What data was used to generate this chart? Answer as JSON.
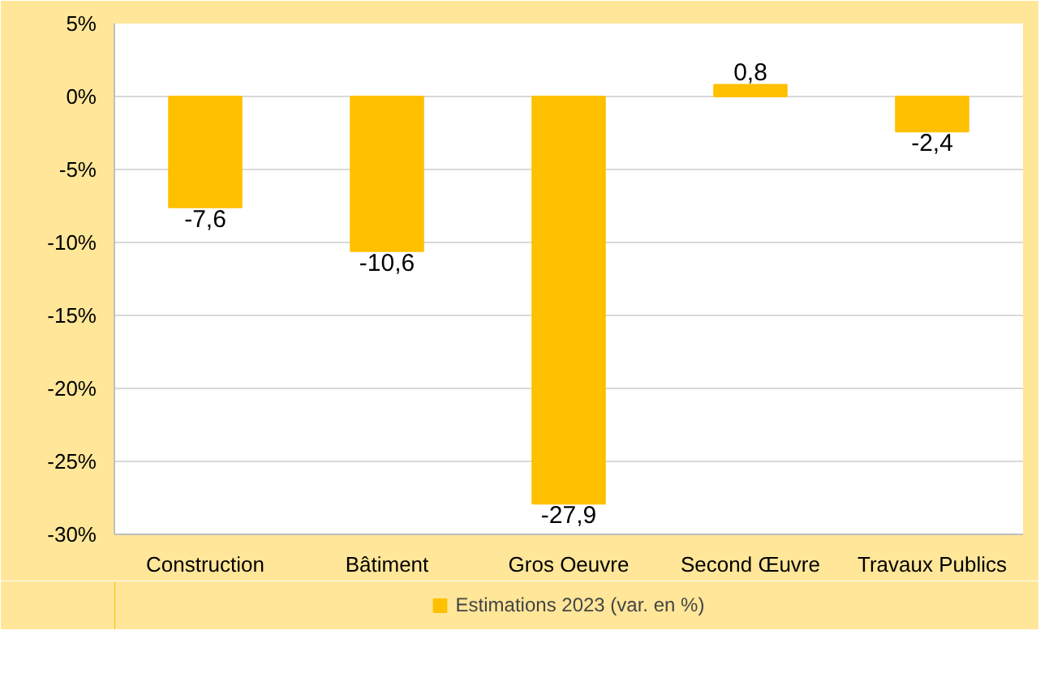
{
  "chart_data": {
    "type": "bar",
    "categories": [
      "Construction",
      "Bâtiment",
      "Gros Oeuvre",
      "Second Œuvre",
      "Travaux Publics"
    ],
    "series": [
      {
        "name": "Estimations 2023 (var. en %)",
        "color": "#ffc000",
        "values": [
          -7.6,
          -10.6,
          -27.9,
          0.8,
          -2.4
        ]
      }
    ],
    "value_labels": [
      "-7,6",
      "-10,6",
      "-27,9",
      "0,8",
      "-2,4"
    ],
    "ylim": [
      -30,
      5
    ],
    "yticks": [
      {
        "value": -30,
        "label": "-30%"
      },
      {
        "value": -25,
        "label": "-25%"
      },
      {
        "value": -20,
        "label": "-20%"
      },
      {
        "value": -15,
        "label": "-15%"
      },
      {
        "value": -10,
        "label": "-10%"
      },
      {
        "value": -5,
        "label": "-5%"
      },
      {
        "value": 0,
        "label": "0%"
      },
      {
        "value": 5,
        "label": "5%"
      }
    ],
    "grid": "y",
    "legend": "bottom"
  }
}
